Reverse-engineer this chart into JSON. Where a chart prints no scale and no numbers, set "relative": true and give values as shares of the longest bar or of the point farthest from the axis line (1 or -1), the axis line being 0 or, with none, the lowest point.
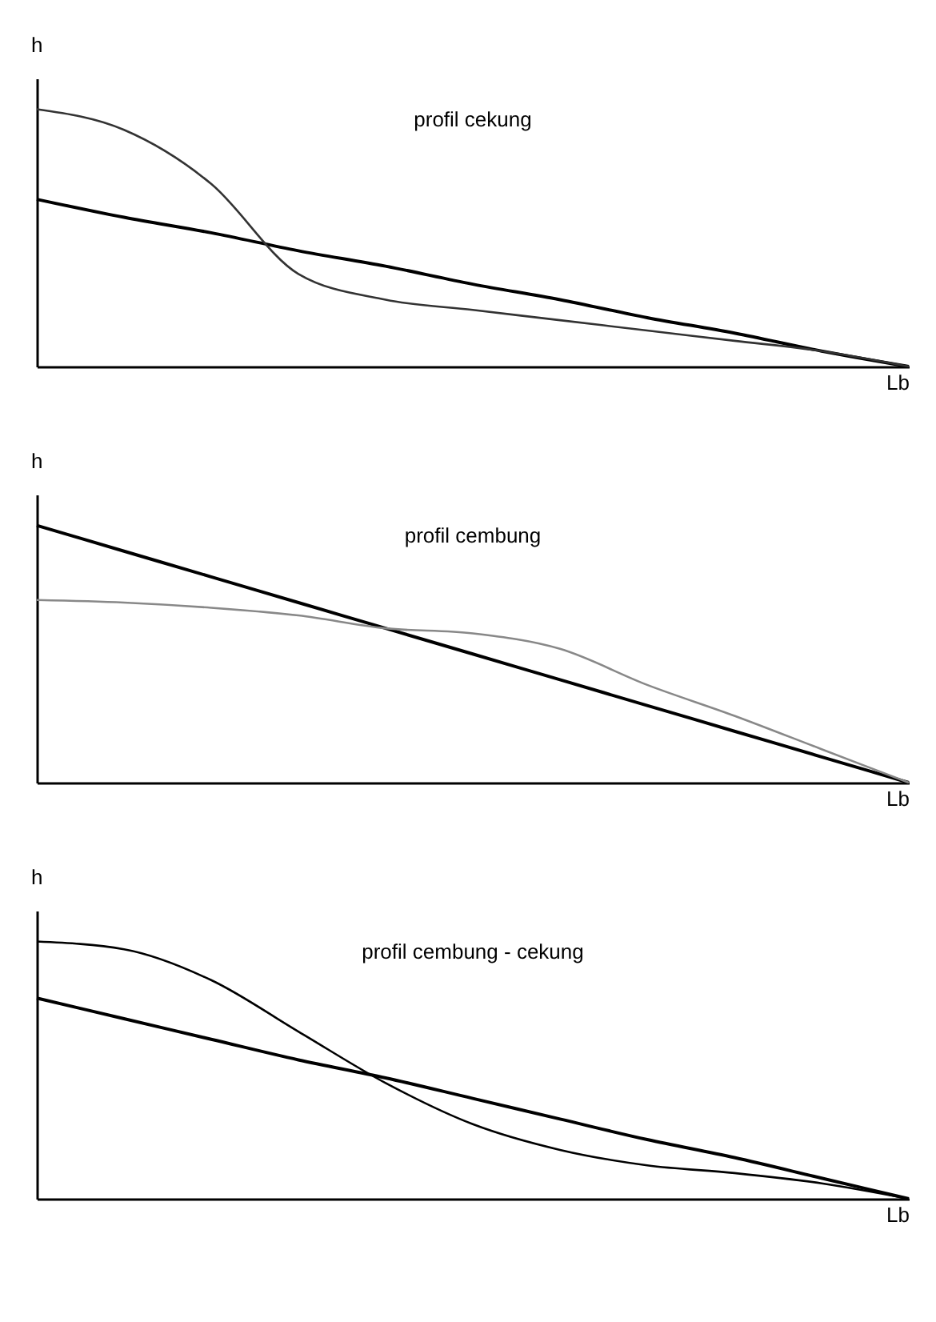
{
  "chart_data": [
    {
      "type": "line",
      "title": "profil cekung",
      "xlabel": "Lb",
      "ylabel": "h",
      "relative": true,
      "legend": false,
      "grid": false,
      "categories": [
        null,
        null,
        null,
        null,
        null,
        null,
        null,
        null,
        null,
        null,
        null
      ],
      "series": [
        {
          "color": "#000000",
          "values": [
            0.65,
            0.58,
            0.52,
            0.45,
            0.39,
            0.32,
            0.26,
            0.19,
            0.13,
            0.06,
            0
          ]
        },
        {
          "color": "#333333",
          "values": [
            1,
            0.92,
            0.71,
            0.36,
            0.26,
            0.22,
            0.18,
            0.14,
            0.1,
            0.06,
            0
          ]
        }
      ]
    },
    {
      "type": "line",
      "title": "profil cembung",
      "xlabel": "Lb",
      "ylabel": "h",
      "relative": true,
      "legend": false,
      "grid": false,
      "categories": [
        null,
        null,
        null,
        null,
        null,
        null,
        null,
        null,
        null,
        null,
        null
      ],
      "series": [
        {
          "color": "#000000",
          "values": [
            1,
            0.9,
            0.8,
            0.7,
            0.6,
            0.5,
            0.4,
            0.3,
            0.2,
            0.1,
            0
          ]
        },
        {
          "color": "#888888",
          "values": [
            0.71,
            0.7,
            0.68,
            0.65,
            0.6,
            0.58,
            0.52,
            0.38,
            0.26,
            0.13,
            0
          ]
        }
      ]
    },
    {
      "type": "line",
      "title": "profil cembung - cekung",
      "xlabel": "Lb",
      "ylabel": "h",
      "relative": true,
      "legend": false,
      "grid": false,
      "categories": [
        null,
        null,
        null,
        null,
        null,
        null,
        null,
        null,
        null,
        null,
        null
      ],
      "series": [
        {
          "color": "#000000",
          "values": [
            0.78,
            0.7,
            0.62,
            0.54,
            0.47,
            0.39,
            0.31,
            0.23,
            0.16,
            0.08,
            0
          ]
        },
        {
          "color": "#000000",
          "values": [
            1,
            0.97,
            0.85,
            0.65,
            0.45,
            0.29,
            0.19,
            0.13,
            0.1,
            0.06,
            0
          ]
        }
      ]
    }
  ]
}
